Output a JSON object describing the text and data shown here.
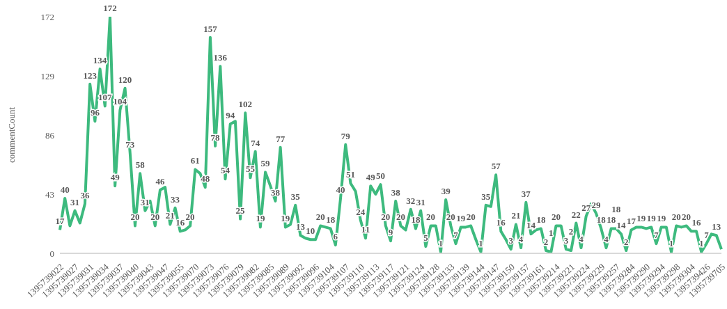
{
  "chart_data": {
    "type": "line",
    "ylabel": "commentCount",
    "ylim": [
      0,
      172
    ],
    "yticks": [
      0,
      43,
      86,
      129,
      172
    ],
    "marker": "none",
    "line_style": "solid",
    "categories": [
      "1395739022",
      null,
      null,
      "1395739027",
      null,
      null,
      "1395739031",
      null,
      null,
      "1395739034",
      null,
      null,
      "1395739037",
      null,
      null,
      "1395739040",
      null,
      null,
      "1395739043",
      null,
      null,
      "1395739047",
      null,
      null,
      "1395739055",
      null,
      null,
      "1395739070",
      null,
      null,
      "1395739073",
      null,
      null,
      "1395739076",
      null,
      null,
      "1395739079",
      null,
      null,
      "1395739082",
      null,
      null,
      "1395739085",
      null,
      null,
      "1395739089",
      null,
      null,
      "1395739092",
      null,
      null,
      "1395739096",
      null,
      null,
      "1395739104",
      null,
      null,
      "1395739107",
      null,
      null,
      "1395739110",
      null,
      null,
      "1395739113",
      null,
      null,
      "1395739117",
      null,
      null,
      "1395739121",
      null,
      null,
      "1395739124",
      null,
      null,
      "1395739128",
      null,
      null,
      "1395739133",
      null,
      null,
      "1395739139",
      null,
      null,
      "1395739144",
      null,
      null,
      "1395739147",
      null,
      null,
      "1395739150",
      null,
      null,
      "1395739157",
      null,
      null,
      "1395739161",
      null,
      null,
      "1395739214",
      null,
      null,
      "1395739221",
      null,
      null,
      "1395739224",
      null,
      null,
      "1395739229",
      null,
      null,
      "1395739257",
      null,
      null,
      "1395739284",
      null,
      null,
      "1395739290",
      null,
      null,
      "1395739294",
      null,
      null,
      "1395739298",
      null,
      null,
      "1395739304",
      null,
      null,
      "1395739426",
      null,
      null,
      "1395739705"
    ],
    "series": [
      {
        "color": "#3dba7e",
        "values": [
          17,
          40,
          20,
          31,
          22,
          36,
          123,
          96,
          134,
          107,
          172,
          49,
          104,
          120,
          73,
          20,
          58,
          31,
          38,
          20,
          46,
          48,
          21,
          33,
          16,
          17,
          20,
          61,
          58,
          48,
          157,
          78,
          136,
          54,
          94,
          96,
          25,
          102,
          55,
          74,
          19,
          59,
          49,
          38,
          77,
          19,
          21,
          35,
          13,
          11,
          10,
          10,
          20,
          19,
          18,
          6,
          40,
          79,
          51,
          45,
          24,
          11,
          49,
          43,
          50,
          20,
          9,
          38,
          20,
          17,
          32,
          18,
          31,
          5,
          20,
          20,
          1,
          39,
          20,
          7,
          19,
          19,
          20,
          10,
          1,
          35,
          34,
          57,
          16,
          10,
          3,
          21,
          4,
          37,
          14,
          17,
          18,
          2,
          1,
          20,
          20,
          3,
          2,
          22,
          4,
          27,
          36,
          29,
          18,
          4,
          18,
          18,
          14,
          2,
          17,
          19,
          19,
          18,
          19,
          7,
          19,
          19,
          1,
          20,
          19,
          20,
          16,
          16,
          1,
          7,
          14,
          13,
          3
        ],
        "value_labels": [
          "17",
          "40",
          null,
          "31",
          null,
          "36",
          "123",
          "96",
          "134",
          "107",
          "172",
          "49",
          "104",
          "120",
          "73",
          "20",
          "58",
          "31",
          null,
          "20",
          "46",
          null,
          "21",
          "33",
          "16",
          null,
          "20",
          "61",
          null,
          "48",
          "157",
          "78",
          "136",
          "54",
          "94",
          null,
          "25",
          "102",
          "55",
          "74",
          "19",
          "59",
          null,
          "38",
          "77",
          "19",
          null,
          "35",
          "13",
          null,
          "10",
          null,
          "20",
          null,
          "18",
          "6",
          "40",
          "79",
          "51",
          null,
          "24",
          "11",
          "49",
          null,
          "50",
          "20",
          "9",
          "38",
          "20",
          null,
          "32",
          "18",
          "31",
          "5",
          "20",
          null,
          "1",
          "39",
          "20",
          "7",
          "19",
          null,
          "20",
          null,
          "1",
          "35",
          null,
          "57",
          "16",
          null,
          "3",
          "21",
          "4",
          "37",
          "14",
          null,
          "18",
          "2",
          "1",
          "20",
          null,
          "3",
          "2",
          "22",
          "4",
          "27",
          null,
          "29",
          "18",
          "4",
          "18",
          "18",
          "14",
          "2",
          "17",
          null,
          "19",
          null,
          "19",
          "7",
          "19",
          null,
          "1",
          "20",
          null,
          "20",
          null,
          "16",
          "1",
          "7",
          null,
          "13",
          null
        ]
      }
    ]
  }
}
